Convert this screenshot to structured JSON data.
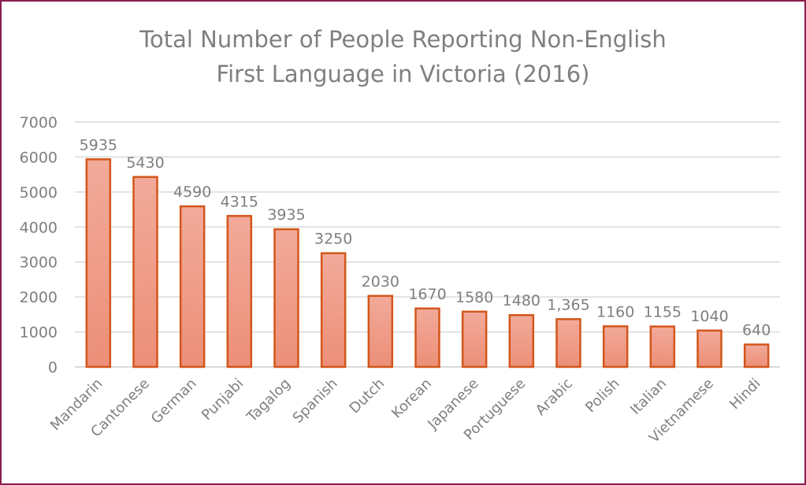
{
  "chart_data": {
    "type": "bar",
    "title_line1": "Total Number of People Reporting Non-English",
    "title_line2": "First Language in Victoria (2016)",
    "xlabel": "",
    "ylabel": "",
    "ylim": [
      0,
      7000
    ],
    "yticks": [
      0,
      1000,
      2000,
      3000,
      4000,
      5000,
      6000,
      7000
    ],
    "grid": true,
    "legend": "none",
    "categories": [
      "Mandarin",
      "Cantonese",
      "German",
      "Punjabi",
      "Tagalog",
      "Spanish",
      "Dutch",
      "Korean",
      "Japanese",
      "Portuguese",
      "Arabic",
      "Polish",
      "Italian",
      "Vietnamese",
      "Hindi"
    ],
    "values": [
      5935,
      5430,
      4590,
      4315,
      3935,
      3250,
      2030,
      1670,
      1580,
      1480,
      1365,
      1160,
      1155,
      1040,
      640
    ],
    "data_labels": [
      "5935",
      "5430",
      "4590",
      "4315",
      "3935",
      "3250",
      "2030",
      "1670",
      "1580",
      "1480",
      "1,365",
      "1160",
      "1155",
      "1040",
      "640"
    ],
    "colors": {
      "bar_fill_top": "#f2aa9a",
      "bar_fill_bottom": "#ec8f78",
      "bar_stroke": "#d2561b",
      "grid": "#d9d9d9",
      "text": "#7f7f7f",
      "border": "#8b1d4f"
    }
  }
}
